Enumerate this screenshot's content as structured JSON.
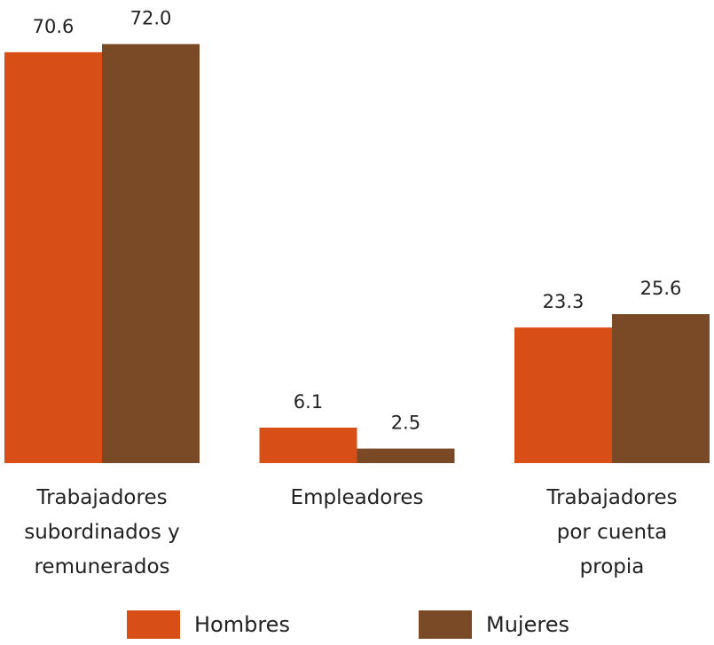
{
  "chart_data": {
    "type": "bar",
    "categories": [
      "Trabajadores subordinados y remunerados",
      "Empleadores",
      "Trabajadores por cuenta propia"
    ],
    "series": [
      {
        "name": "Hombres",
        "color": "#d84e17",
        "values": [
          70.6,
          6.1,
          23.3
        ]
      },
      {
        "name": "Mujeres",
        "color": "#7a4a26",
        "values": [
          72.0,
          2.5,
          25.6
        ],
        "value_labels": [
          "72.0",
          "2.5",
          "25.6"
        ]
      }
    ],
    "ylim": [
      0,
      75
    ],
    "legend": "bottom"
  }
}
